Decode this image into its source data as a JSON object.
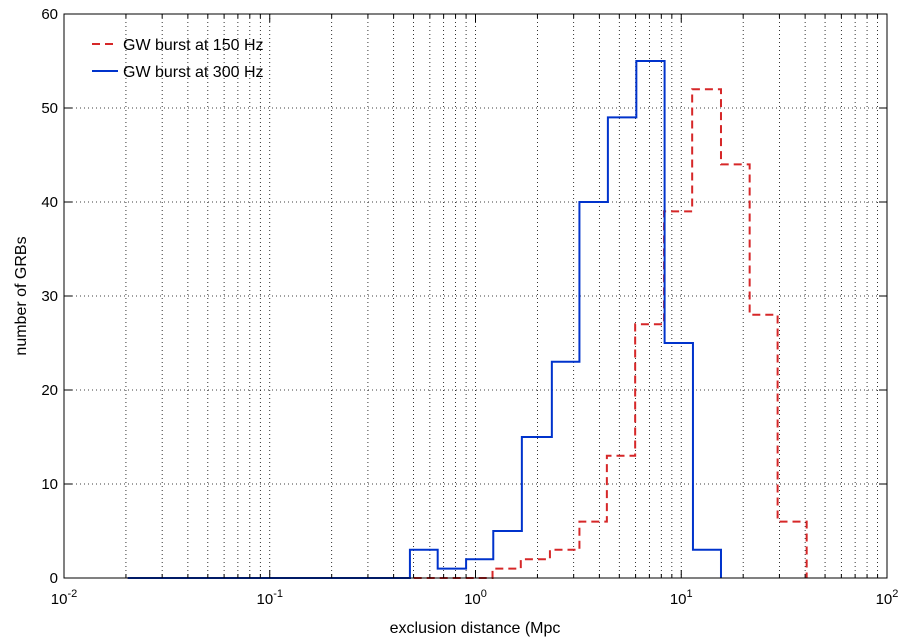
{
  "chart_data": {
    "type": "line",
    "step": true,
    "title": "",
    "xlabel": "exclusion distance (Mpc",
    "ylabel": "number of GRBs",
    "xscale": "log",
    "xlim": [
      0.01,
      100
    ],
    "ylim": [
      0,
      60
    ],
    "x_ticks": [
      {
        "value": 0.01,
        "base": "10",
        "exp": "-2"
      },
      {
        "value": 0.1,
        "base": "10",
        "exp": "-1"
      },
      {
        "value": 1,
        "base": "10",
        "exp": "0"
      },
      {
        "value": 10,
        "base": "10",
        "exp": "1"
      },
      {
        "value": 100,
        "base": "10",
        "exp": "2"
      }
    ],
    "y_ticks": [
      "0",
      "10",
      "20",
      "30",
      "40",
      "50",
      "60"
    ],
    "grid": true,
    "grid_style": "dotted",
    "legend_position": "top-left",
    "series": [
      {
        "name": "GW burst at 150 Hz",
        "color": "#d62728",
        "line_style": "dashed",
        "x": [
          0.0204,
          0.5,
          1.21,
          1.66,
          2.3,
          3.2,
          4.35,
          5.97,
          8.25,
          11.3,
          15.6,
          21.5,
          29.4,
          40.7
        ],
        "y": [
          0,
          0,
          1,
          2,
          3,
          6,
          13,
          27,
          39,
          52,
          44,
          28,
          6,
          0
        ]
      },
      {
        "name": "GW burst at 300 Hz",
        "color": "#0033cc",
        "line_style": "solid",
        "x": [
          0.0204,
          0.48,
          0.655,
          0.9,
          1.22,
          1.68,
          2.35,
          3.2,
          4.4,
          6.05,
          8.3,
          11.4,
          15.6
        ],
        "y": [
          0,
          3,
          1,
          2,
          5,
          15,
          23,
          40,
          49,
          55,
          25,
          3,
          0
        ]
      }
    ]
  }
}
